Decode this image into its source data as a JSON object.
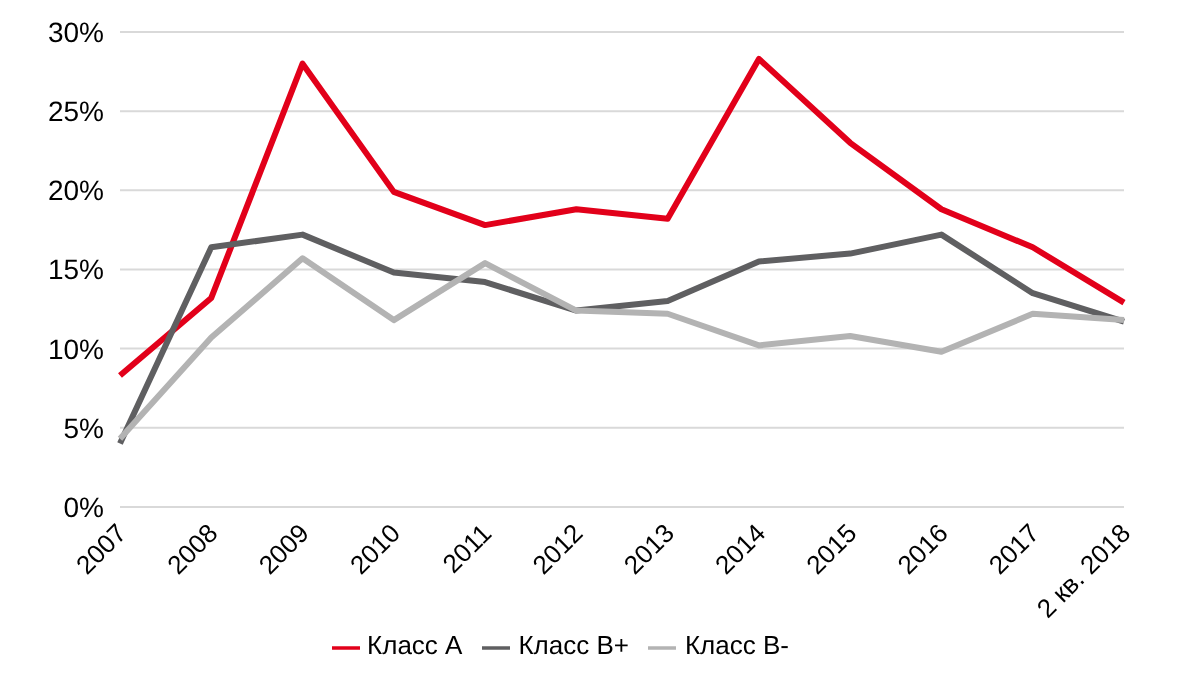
{
  "chart_data": {
    "type": "line",
    "categories": [
      "2007",
      "2008",
      "2009",
      "2010",
      "2011",
      "2012",
      "2013",
      "2014",
      "2015",
      "2016",
      "2017",
      "2 кв. 2018"
    ],
    "series": [
      {
        "name": "Класс А",
        "color": "#e2001a",
        "values": [
          8.3,
          13.2,
          28.0,
          19.9,
          17.8,
          18.8,
          18.2,
          28.3,
          23.0,
          18.8,
          16.4,
          12.9
        ]
      },
      {
        "name": "Класс В+",
        "color": "#5f5f61",
        "values": [
          4.0,
          16.4,
          17.2,
          14.8,
          14.2,
          12.4,
          13.0,
          15.5,
          16.0,
          17.2,
          13.5,
          11.7
        ]
      },
      {
        "name": "Класс В-",
        "color": "#b3b3b3",
        "values": [
          4.3,
          10.7,
          15.7,
          11.8,
          15.4,
          12.4,
          12.2,
          10.2,
          10.8,
          9.8,
          12.2,
          11.8
        ]
      }
    ],
    "ylim": [
      0,
      30
    ],
    "yticks": [
      {
        "value": 0,
        "label": "0%"
      },
      {
        "value": 5,
        "label": "5%"
      },
      {
        "value": 10,
        "label": "10%"
      },
      {
        "value": 15,
        "label": "15%"
      },
      {
        "value": 20,
        "label": "20%"
      },
      {
        "value": 25,
        "label": "25%"
      },
      {
        "value": 30,
        "label": "30%"
      }
    ],
    "grid": "y",
    "legend": "bottom",
    "marker": "none",
    "line_style": "solid"
  }
}
